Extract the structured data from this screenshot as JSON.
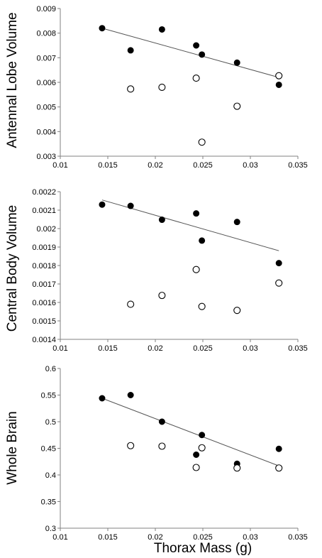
{
  "chart_data": [
    {
      "type": "scatter",
      "title": "",
      "xlabel": "",
      "ylabel": "Antennal Lobe Volume",
      "xlim": [
        0.01,
        0.035
      ],
      "ylim": [
        0.003,
        0.009
      ],
      "xticks": [
        "0.01",
        "0.015",
        "0.02",
        "0.025",
        "0.03",
        "0.035"
      ],
      "yticks": [
        "0.003",
        "0.004",
        "0.005",
        "0.006",
        "0.007",
        "0.008",
        "0.009"
      ],
      "grid": false,
      "series": [
        {
          "style": "filled",
          "points": [
            {
              "x": 0.0144,
              "y": 0.0082
            },
            {
              "x": 0.0174,
              "y": 0.0073
            },
            {
              "x": 0.0207,
              "y": 0.00815
            },
            {
              "x": 0.0243,
              "y": 0.0075
            },
            {
              "x": 0.0249,
              "y": 0.00713
            },
            {
              "x": 0.0286,
              "y": 0.0068
            },
            {
              "x": 0.033,
              "y": 0.0059
            }
          ],
          "trendline": [
            [
              0.0144,
              0.0082
            ],
            [
              0.033,
              0.0062
            ]
          ]
        },
        {
          "style": "open",
          "points": [
            {
              "x": 0.0174,
              "y": 0.00573
            },
            {
              "x": 0.0207,
              "y": 0.0058
            },
            {
              "x": 0.0243,
              "y": 0.00617
            },
            {
              "x": 0.0249,
              "y": 0.00357
            },
            {
              "x": 0.0286,
              "y": 0.00503
            },
            {
              "x": 0.033,
              "y": 0.00627
            }
          ]
        }
      ]
    },
    {
      "type": "scatter",
      "title": "",
      "xlabel": "",
      "ylabel": "Central Body Volume",
      "xlim": [
        0.01,
        0.035
      ],
      "ylim": [
        0.0014,
        0.0022
      ],
      "xticks": [
        "0.01",
        "0.015",
        "0.02",
        "0.025",
        "0.03",
        "0.035"
      ],
      "yticks": [
        "0.0014",
        "0.0015",
        "0.0016",
        "0.0017",
        "0.0018",
        "0.0019",
        "0.002",
        "0.0021",
        "0.0022"
      ],
      "grid": false,
      "series": [
        {
          "style": "filled",
          "points": [
            {
              "x": 0.0144,
              "y": 0.00213
            },
            {
              "x": 0.0174,
              "y": 0.002123
            },
            {
              "x": 0.0207,
              "y": 0.002048
            },
            {
              "x": 0.0243,
              "y": 0.002082
            },
            {
              "x": 0.0249,
              "y": 0.001935
            },
            {
              "x": 0.0286,
              "y": 0.002036
            },
            {
              "x": 0.033,
              "y": 0.001813
            }
          ],
          "trendline": [
            [
              0.0144,
              0.002155
            ],
            [
              0.033,
              0.00188
            ]
          ]
        },
        {
          "style": "open",
          "points": [
            {
              "x": 0.0174,
              "y": 0.00159
            },
            {
              "x": 0.0207,
              "y": 0.001638
            },
            {
              "x": 0.0243,
              "y": 0.001778
            },
            {
              "x": 0.0249,
              "y": 0.001578
            },
            {
              "x": 0.0286,
              "y": 0.001557
            },
            {
              "x": 0.033,
              "y": 0.001705
            }
          ]
        }
      ]
    },
    {
      "type": "scatter",
      "title": "",
      "xlabel": "Thorax Mass (g)",
      "ylabel": "Whole Brain",
      "xlim": [
        0.01,
        0.035
      ],
      "ylim": [
        0.3,
        0.6
      ],
      "xticks": [
        "0.01",
        "0.015",
        "0.02",
        "0.025",
        "0.03",
        "0.035"
      ],
      "yticks": [
        "0.3",
        "0.35",
        "0.4",
        "0.45",
        "0.5",
        "0.55",
        "0.6"
      ],
      "grid": false,
      "series": [
        {
          "style": "filled",
          "points": [
            {
              "x": 0.0144,
              "y": 0.544
            },
            {
              "x": 0.0174,
              "y": 0.55
            },
            {
              "x": 0.0207,
              "y": 0.5
            },
            {
              "x": 0.0243,
              "y": 0.438
            },
            {
              "x": 0.0249,
              "y": 0.475
            },
            {
              "x": 0.0286,
              "y": 0.421
            },
            {
              "x": 0.033,
              "y": 0.449
            }
          ],
          "trendline": [
            [
              0.0144,
              0.544
            ],
            [
              0.033,
              0.417
            ]
          ]
        },
        {
          "style": "open",
          "points": [
            {
              "x": 0.0174,
              "y": 0.455
            },
            {
              "x": 0.0207,
              "y": 0.454
            },
            {
              "x": 0.0243,
              "y": 0.414
            },
            {
              "x": 0.0249,
              "y": 0.451
            },
            {
              "x": 0.0286,
              "y": 0.413
            },
            {
              "x": 0.033,
              "y": 0.413
            }
          ]
        }
      ]
    }
  ]
}
